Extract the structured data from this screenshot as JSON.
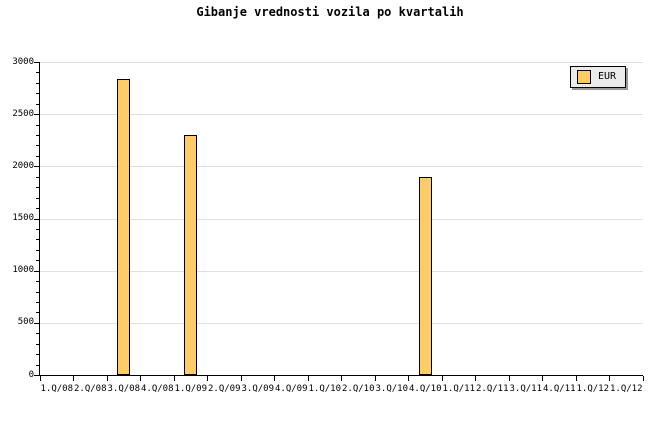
{
  "chart_data": {
    "type": "bar",
    "title": "Gibanje vrednosti vozila po kvartalih",
    "categories": [
      "1.Q/08",
      "2.Q/08",
      "3.Q/08",
      "4.Q/08",
      "1.Q/09",
      "2.Q/09",
      "3.Q/09",
      "4.Q/09",
      "1.Q/10",
      "2.Q/10",
      "3.Q/10",
      "4.Q/10",
      "1.Q/11",
      "2.Q/11",
      "3.Q/11",
      "4.Q/11",
      "1.Q/12",
      "1.Q/12"
    ],
    "series": [
      {
        "name": "EUR",
        "values": [
          null,
          null,
          2840,
          null,
          2300,
          null,
          null,
          null,
          null,
          null,
          null,
          1900,
          null,
          null,
          null,
          null,
          null,
          null
        ]
      }
    ],
    "xlabel": "",
    "ylabel": "",
    "ylim": [
      0,
      3000
    ],
    "ytick_step": 500,
    "yminor_step": 100,
    "ytick_labels": [
      "0",
      "500",
      "1000",
      "1500",
      "2000",
      "2500",
      "3000"
    ],
    "grid": true,
    "legend": {
      "label": "EUR",
      "position": "top-right"
    },
    "colors": {
      "background": "#FFFFFF",
      "bar_fill": "#FFCC66",
      "bar_border": "#000000",
      "axis": "#000000",
      "grid": "#E0E0E0",
      "text": "#000000",
      "legend_bg": "#EBEBEB",
      "legend_border": "#000000",
      "legend_shadow": "#999999"
    }
  }
}
